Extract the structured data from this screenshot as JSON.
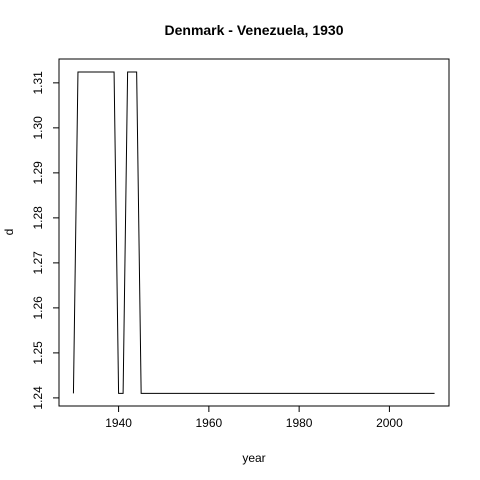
{
  "chart_data": {
    "type": "line",
    "title": "Denmark - Venezuela, 1930",
    "xlabel": "year",
    "ylabel": "d",
    "xlim": [
      1926.8,
      2013.2
    ],
    "ylim": [
      1.2382,
      1.3153
    ],
    "xticks": [
      1940,
      1960,
      1980,
      2000
    ],
    "yticks": [
      1.24,
      1.25,
      1.26,
      1.27,
      1.28,
      1.29,
      1.3,
      1.31
    ],
    "ytick_labels": [
      "1.24",
      "1.25",
      "1.26",
      "1.27",
      "1.28",
      "1.29",
      "1.30",
      "1.31"
    ],
    "grid": false,
    "series": [
      {
        "x": [
          1930,
          1931,
          1939,
          1940,
          1941,
          1942,
          1944,
          1945,
          2010
        ],
        "y": [
          1.241,
          1.3124,
          1.3124,
          1.241,
          1.241,
          1.3124,
          1.3124,
          1.241,
          1.241
        ]
      }
    ]
  }
}
